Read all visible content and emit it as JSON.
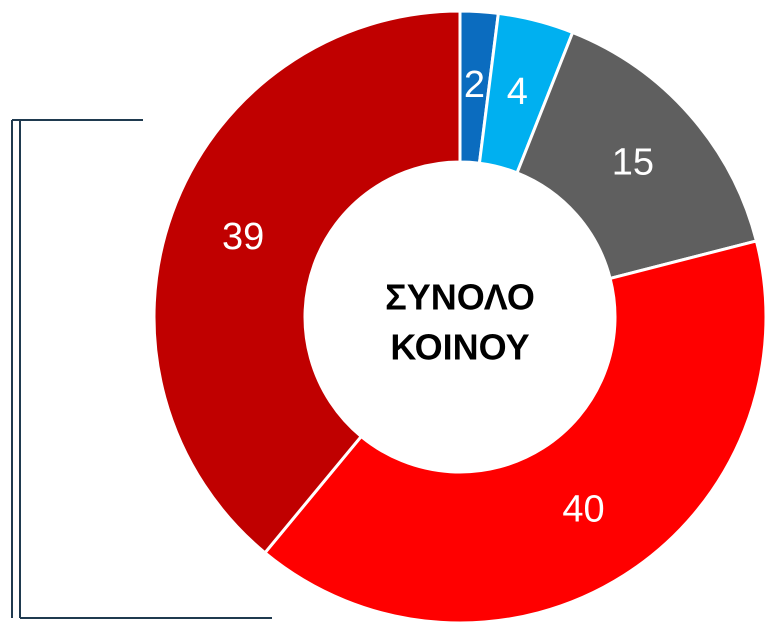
{
  "chart_data": {
    "type": "donut",
    "center_text": [
      "ΣΥΝΟΛΟ",
      "ΚΟΙΝΟΥ"
    ],
    "values": [
      2,
      4,
      15,
      40,
      39
    ],
    "colors": [
      "#0b6cbf",
      "#00b0f0",
      "#5f5f5f",
      "#ff0000",
      "#c00000"
    ]
  }
}
